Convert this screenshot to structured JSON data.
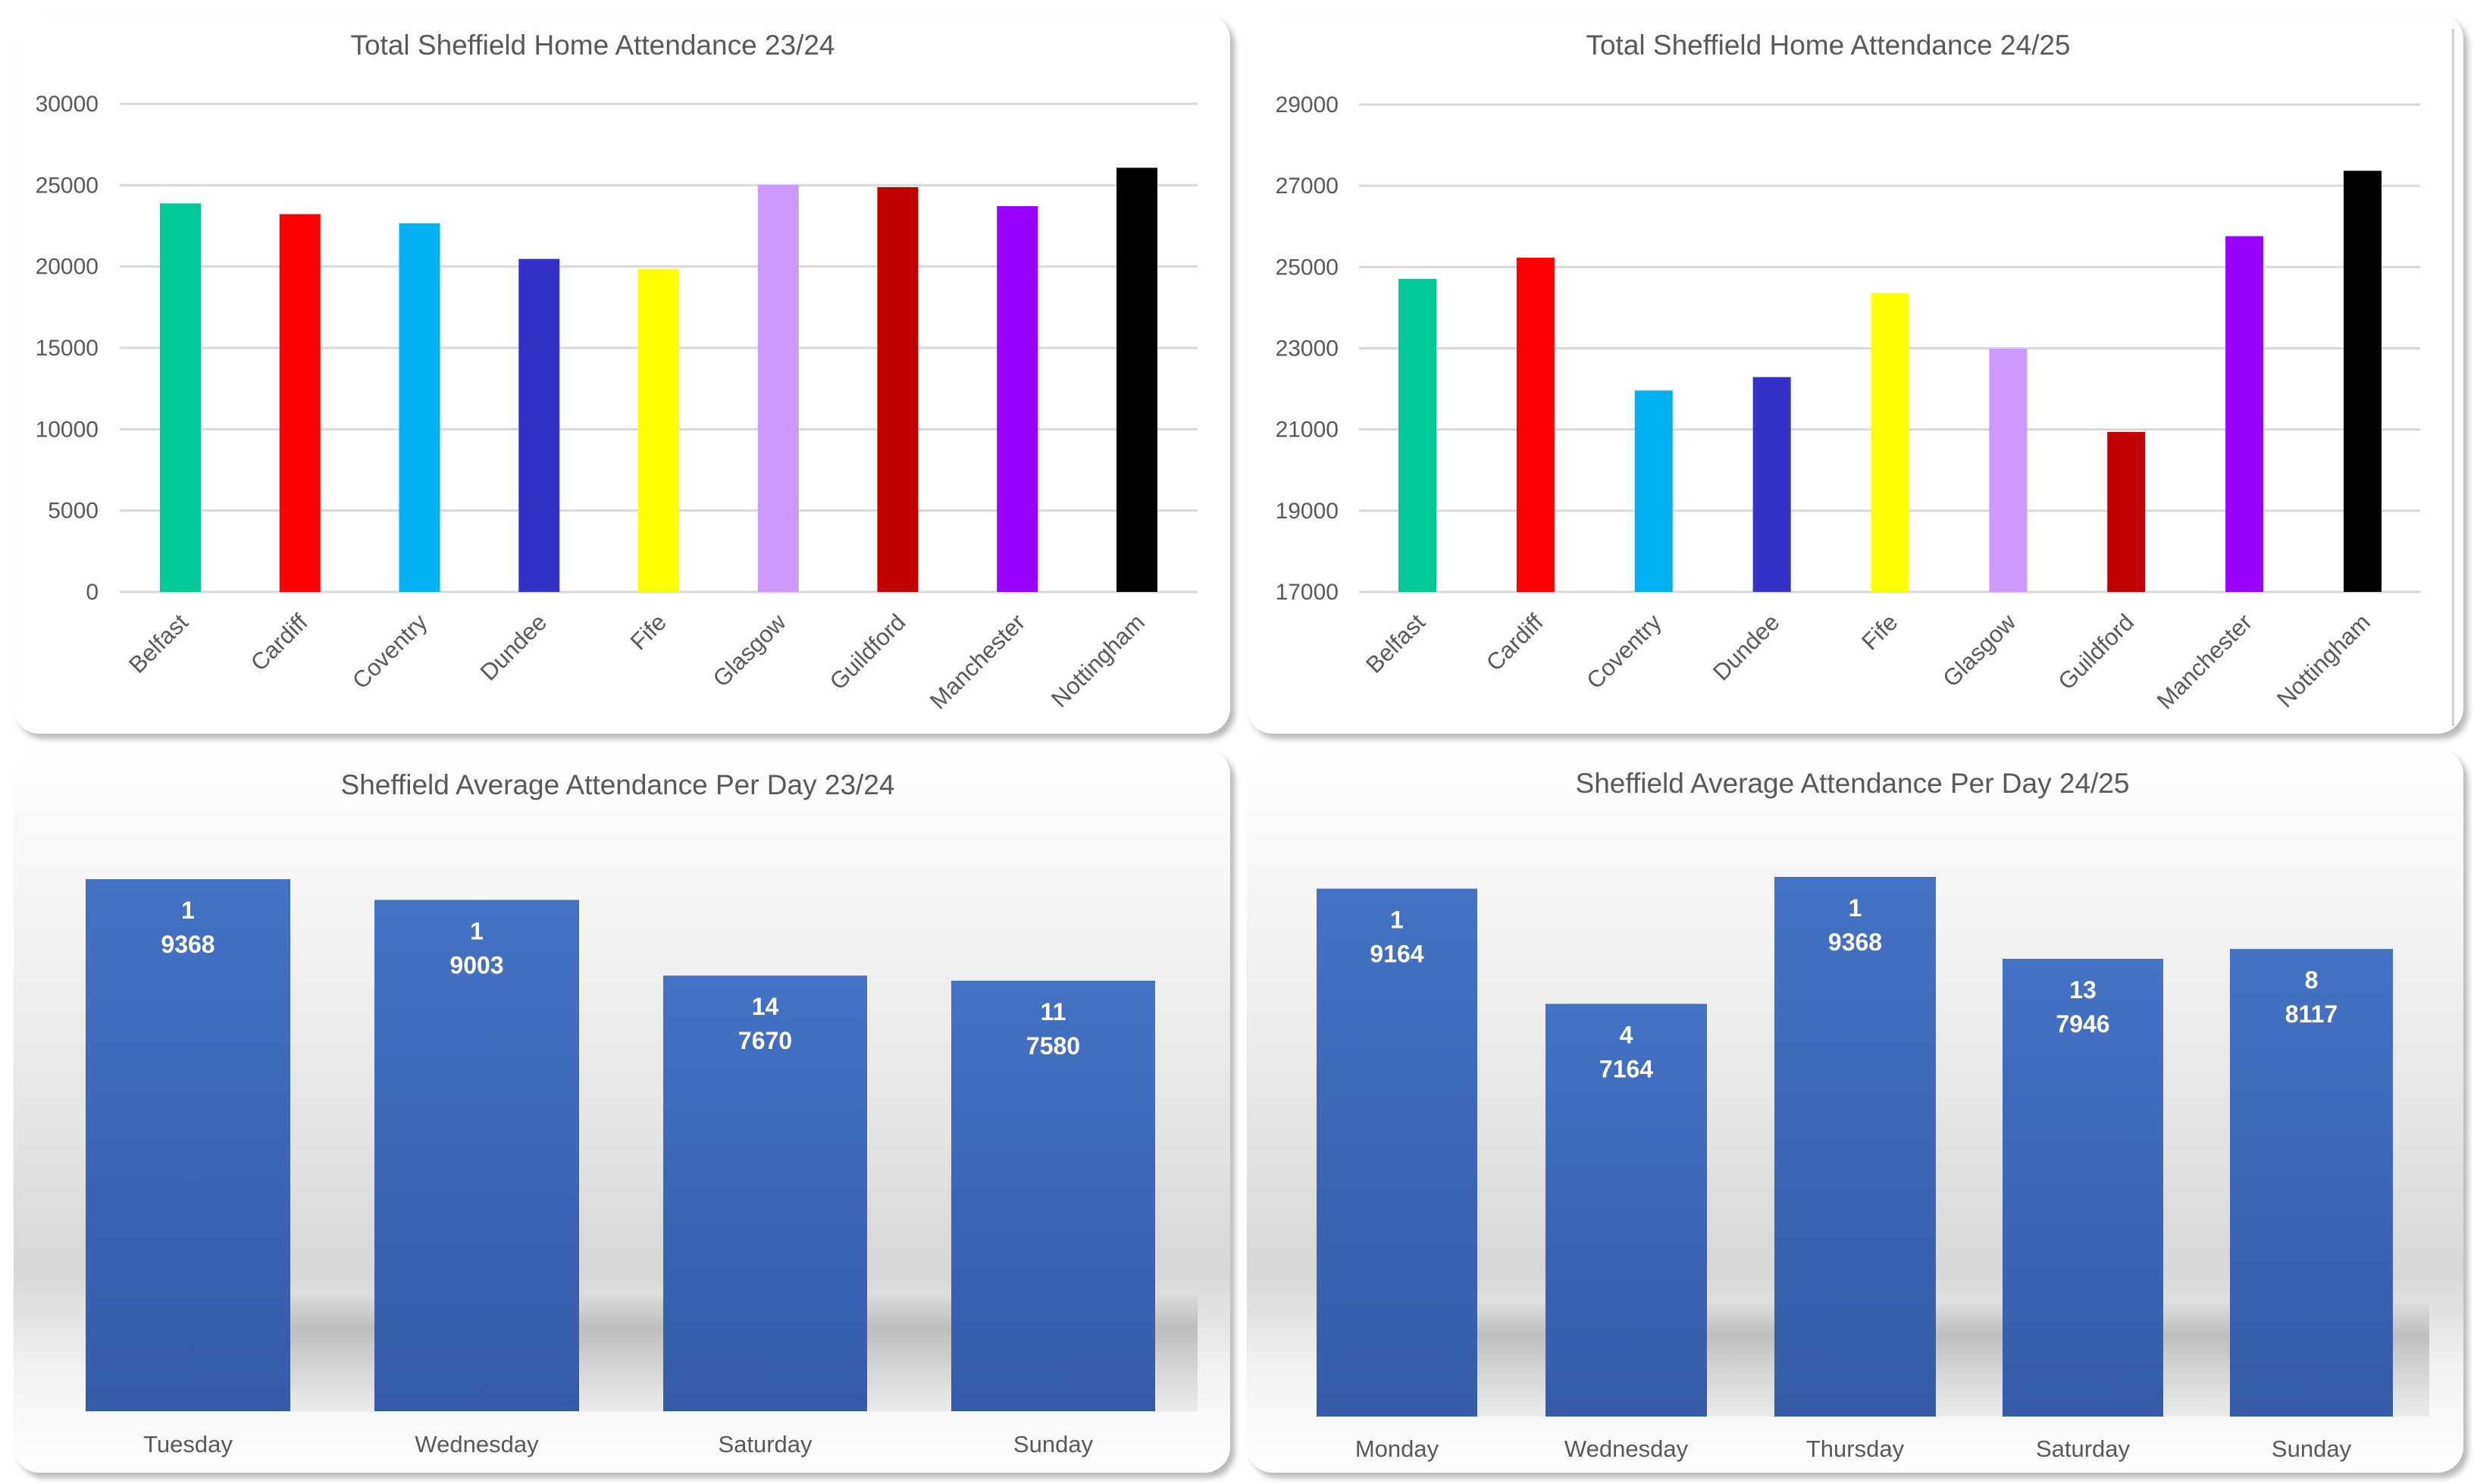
{
  "chart_data": [
    {
      "type": "bar",
      "title": "Total Sheffield Home Attendance 23/24",
      "xlabel": "",
      "ylabel": "",
      "ylim": [
        0,
        30000
      ],
      "yticks": [
        "0",
        "5000",
        "10000",
        "15000",
        "20000",
        "25000",
        "30000"
      ],
      "ytick_values": [
        0,
        5000,
        10000,
        15000,
        20000,
        25000,
        30000
      ],
      "grid": true,
      "legend": "none",
      "categories": [
        "Belfast",
        "Cardiff",
        "Coventry",
        "Dundee",
        "Fife",
        "Glasgow",
        "Guildford",
        "Manchester",
        "Nottingham"
      ],
      "values": [
        23880,
        23220,
        22660,
        20470,
        19860,
        25020,
        24880,
        23710,
        26070
      ],
      "colors": [
        "#00C896",
        "#FF0000",
        "#00B0F0",
        "#3530C8",
        "#FFFF00",
        "#CC99FF",
        "#C00000",
        "#9900FF",
        "#000000"
      ]
    },
    {
      "type": "bar",
      "title": "Total Sheffield Home Attendance 24/25",
      "xlabel": "",
      "ylabel": "",
      "ylim": [
        17000,
        29000
      ],
      "yticks": [
        "17000",
        "19000",
        "21000",
        "23000",
        "25000",
        "27000",
        "29000"
      ],
      "ytick_values": [
        17000,
        19000,
        21000,
        23000,
        25000,
        27000,
        29000
      ],
      "grid": true,
      "legend": "none",
      "categories": [
        "Belfast",
        "Cardiff",
        "Coventry",
        "Dundee",
        "Fife",
        "Glasgow",
        "Guildford",
        "Manchester",
        "Nottingham"
      ],
      "values": [
        24710,
        25230,
        21960,
        22290,
        24360,
        22990,
        20940,
        25760,
        27370
      ],
      "colors": [
        "#00C896",
        "#FF0000",
        "#00B0F0",
        "#3530C8",
        "#FFFF00",
        "#CC99FF",
        "#C00000",
        "#9900FF",
        "#000000"
      ]
    },
    {
      "type": "bar",
      "title": "Sheffield Average Attendance Per Day 23/24",
      "xlabel": "",
      "ylabel": "",
      "ylim": [
        0,
        9368
      ],
      "grid": false,
      "legend": "none",
      "categories": [
        "Tuesday",
        "Wednesday",
        "Saturday",
        "Sunday"
      ],
      "values": [
        9368,
        9003,
        7670,
        7580
      ],
      "counts": [
        "1",
        "1",
        "14",
        "11"
      ],
      "data_labels": [
        [
          "1",
          "9368"
        ],
        [
          "1",
          "9003"
        ],
        [
          "14",
          "7670"
        ],
        [
          "11",
          "7580"
        ]
      ],
      "bar_color": "#4472C4"
    },
    {
      "type": "bar",
      "title": "Sheffield Average Attendance Per Day 24/25",
      "xlabel": "",
      "ylabel": "",
      "ylim": [
        0,
        9368
      ],
      "grid": false,
      "legend": "none",
      "categories": [
        "Monday",
        "Wednesday",
        "Thursday",
        "Saturday",
        "Sunday"
      ],
      "values": [
        9164,
        7164,
        9368,
        7946,
        8117
      ],
      "counts": [
        "1",
        "4",
        "1",
        "13",
        "8"
      ],
      "data_labels": [
        [
          "1",
          "9164"
        ],
        [
          "4",
          "7164"
        ],
        [
          "1",
          "9368"
        ],
        [
          "13",
          "7946"
        ],
        [
          "8",
          "8117"
        ]
      ],
      "bar_color": "#4472C4"
    }
  ]
}
